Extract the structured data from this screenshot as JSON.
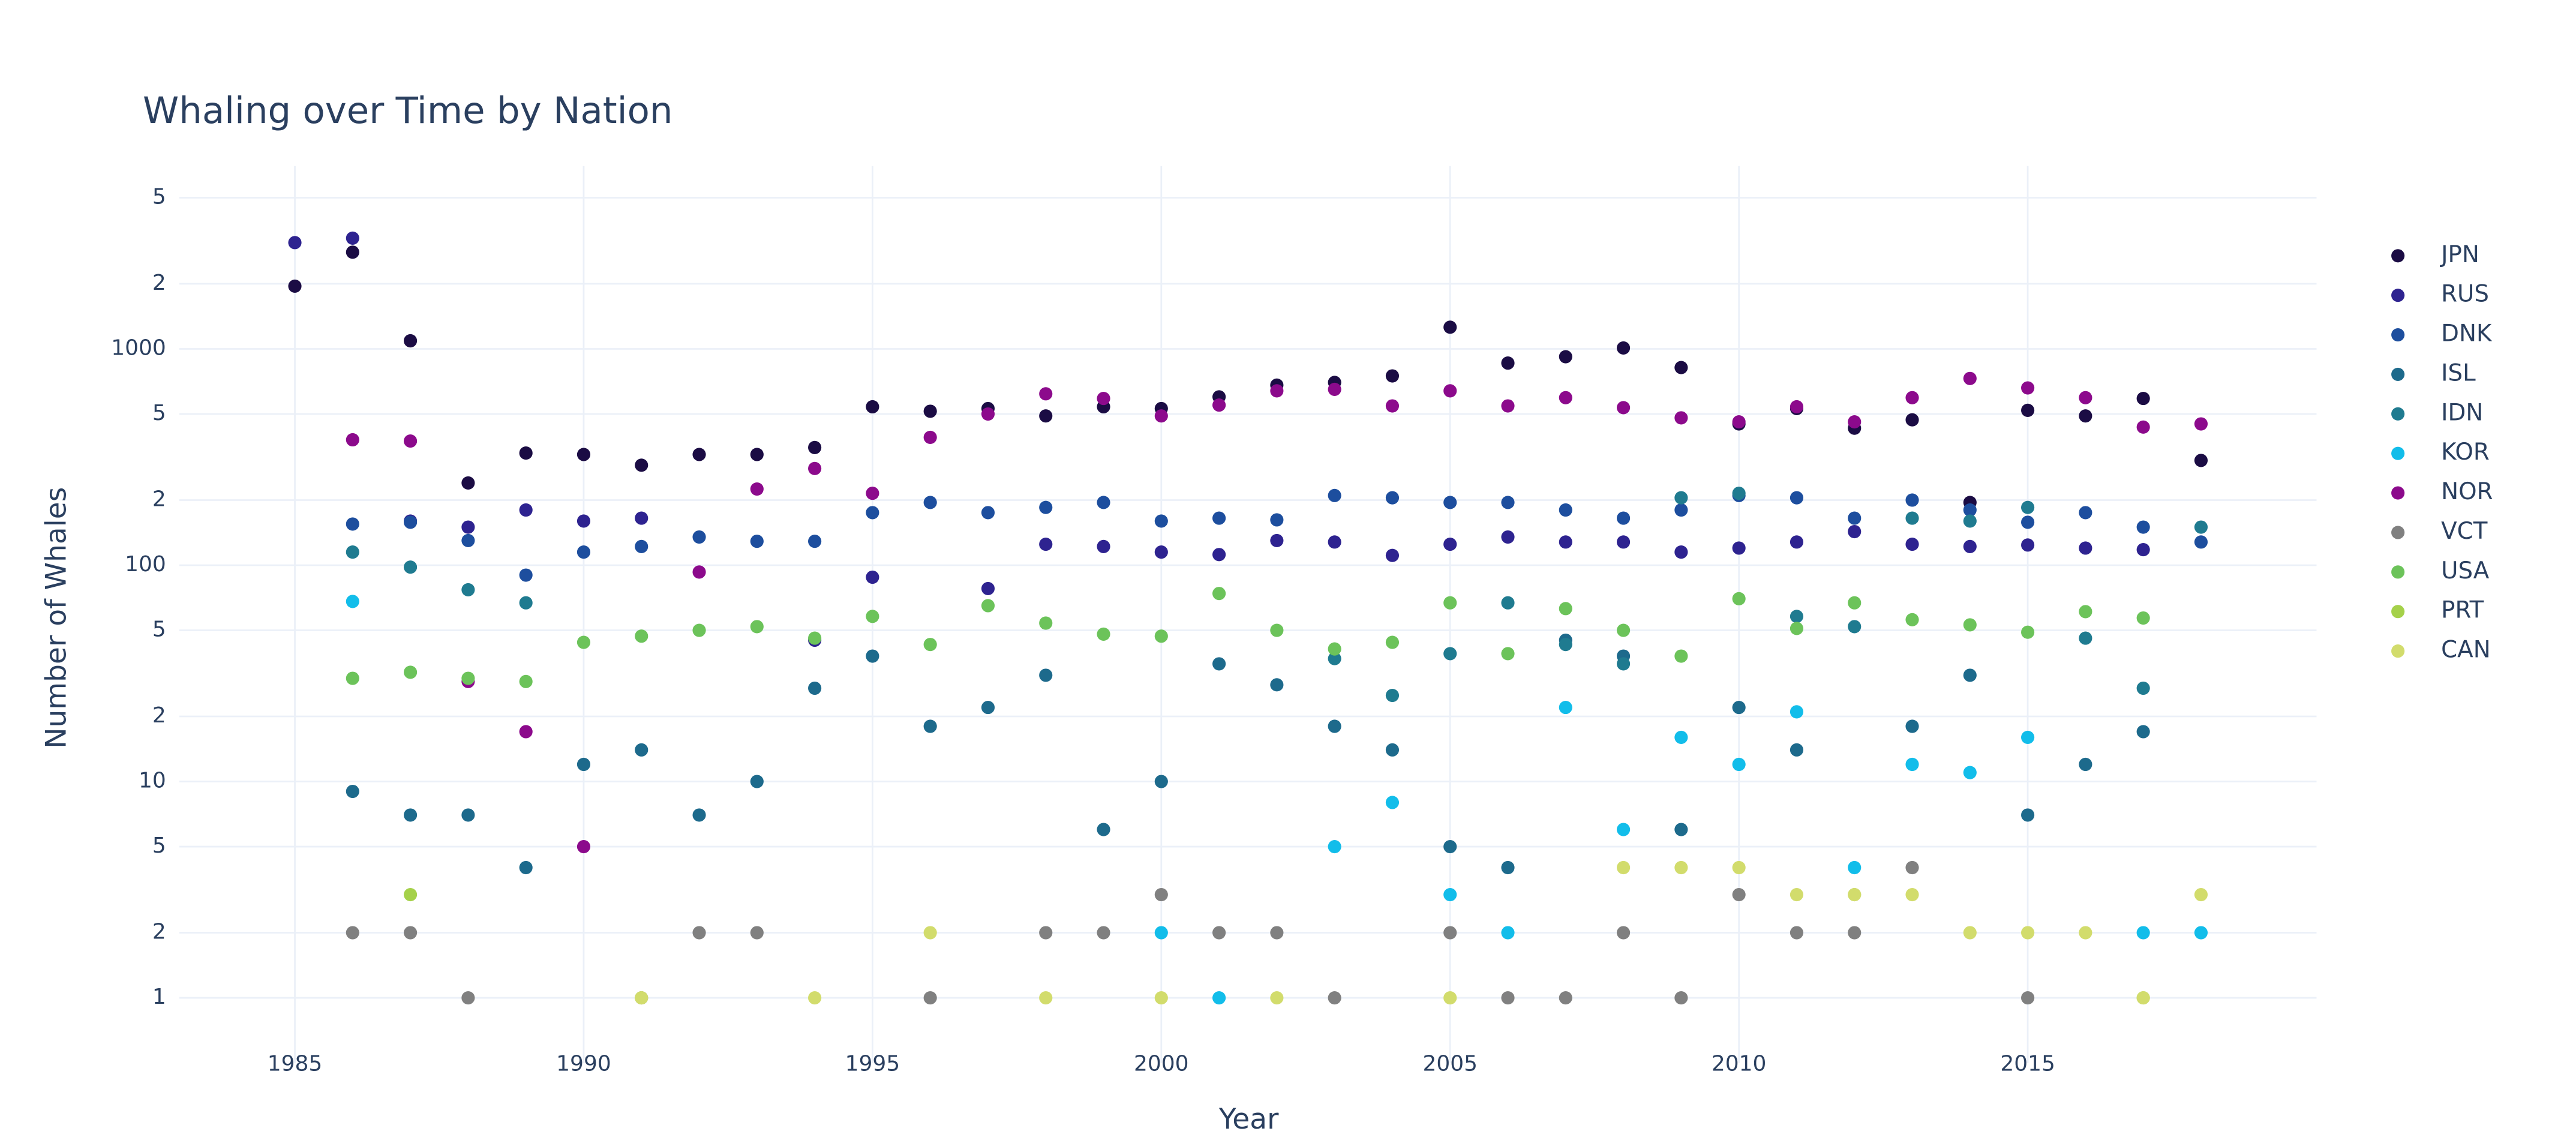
{
  "chart_data": {
    "type": "scatter",
    "title": "Whaling over Time by Nation",
    "x_label": "Year",
    "y_label": "Number of Whales",
    "log_y": true,
    "grid": true,
    "legend": "right",
    "xlim": [
      1983,
      2020
    ],
    "xticks": [
      1985,
      1990,
      1995,
      2000,
      2005,
      2010,
      2015
    ],
    "ylim": [
      0.5,
      7000
    ],
    "yticks": [
      1,
      2,
      5,
      10,
      {
        "value": 20,
        "label": "2"
      },
      {
        "value": 50,
        "label": "5"
      },
      100,
      {
        "value": 200,
        "label": "2"
      },
      {
        "value": 500,
        "label": "5"
      },
      1000,
      {
        "value": 2000,
        "label": "2"
      },
      {
        "value": 5000,
        "label": "5"
      }
    ],
    "series": [
      {
        "name": "JPN",
        "color": "#1b0c44",
        "x": [
          1985,
          1986,
          1987,
          1988,
          1989,
          1990,
          1991,
          1992,
          1993,
          1994,
          1995,
          1996,
          1997,
          1998,
          1999,
          2000,
          2001,
          2002,
          2003,
          2004,
          2005,
          2006,
          2007,
          2008,
          2009,
          2010,
          2011,
          2012,
          2013,
          2014,
          2015,
          2016,
          2017,
          2018
        ],
        "values": [
          1950,
          2800,
          1090,
          240,
          330,
          325,
          290,
          325,
          325,
          350,
          540,
          515,
          530,
          490,
          540,
          530,
          600,
          680,
          700,
          750,
          1260,
          860,
          920,
          1010,
          820,
          450,
          530,
          430,
          470,
          195,
          520,
          490,
          590,
          305
        ]
      },
      {
        "name": "RUS",
        "color": "#2e2390",
        "x": [
          1985,
          1986,
          1987,
          1988,
          1989,
          1990,
          1991,
          1994,
          1995,
          1997,
          1998,
          1999,
          2000,
          2001,
          2002,
          2003,
          2004,
          2005,
          2006,
          2007,
          2008,
          2009,
          2010,
          2011,
          2012,
          2013,
          2014,
          2015,
          2016,
          2017
        ],
        "values": [
          3100,
          3250,
          160,
          150,
          180,
          160,
          165,
          45,
          88,
          78,
          125,
          122,
          115,
          112,
          130,
          128,
          111,
          125,
          135,
          128,
          128,
          115,
          120,
          128,
          143,
          125,
          122,
          124,
          120,
          118
        ]
      },
      {
        "name": "DNK",
        "color": "#1d4e9e",
        "x": [
          1986,
          1987,
          1988,
          1989,
          1990,
          1991,
          1992,
          1993,
          1994,
          1995,
          1996,
          1997,
          1998,
          1999,
          2000,
          2001,
          2002,
          2003,
          2004,
          2005,
          2006,
          2007,
          2008,
          2009,
          2010,
          2011,
          2012,
          2013,
          2014,
          2015,
          2016,
          2017,
          2018
        ],
        "values": [
          155,
          158,
          130,
          90,
          115,
          122,
          135,
          129,
          129,
          175,
          195,
          175,
          185,
          195,
          160,
          165,
          162,
          210,
          205,
          195,
          195,
          180,
          165,
          180,
          210,
          205,
          165,
          200,
          180,
          158,
          175,
          150,
          128
        ]
      },
      {
        "name": "ISL",
        "color": "#1d6a8c",
        "x": [
          1986,
          1987,
          1988,
          1989,
          1990,
          1991,
          1992,
          1993,
          1994,
          1995,
          1996,
          1997,
          1998,
          1999,
          2000,
          2001,
          2002,
          2003,
          2004,
          2005,
          2006,
          2007,
          2008,
          2009,
          2010,
          2011,
          2013,
          2014,
          2015,
          2016,
          2017
        ],
        "values": [
          9,
          7,
          7,
          4,
          12,
          14,
          7,
          10,
          27,
          38,
          18,
          22,
          31,
          6,
          10,
          35,
          28,
          18,
          14,
          5,
          4,
          45,
          38,
          6,
          22,
          14,
          18,
          31,
          7,
          12,
          17
        ]
      },
      {
        "name": "IDN",
        "color": "#1f7b90",
        "x": [
          1986,
          1987,
          1988,
          1989,
          2003,
          2004,
          2005,
          2006,
          2007,
          2008,
          2009,
          2010,
          2011,
          2012,
          2013,
          2014,
          2015,
          2016,
          2017,
          2018
        ],
        "values": [
          115,
          98,
          77,
          67,
          37,
          25,
          39,
          67,
          43,
          35,
          205,
          215,
          58,
          52,
          165,
          160,
          185,
          46,
          27,
          150
        ]
      },
      {
        "name": "KOR",
        "color": "#12bdea",
        "x": [
          1986,
          2000,
          2001,
          2003,
          2004,
          2005,
          2006,
          2007,
          2008,
          2009,
          2010,
          2011,
          2012,
          2013,
          2014,
          2015,
          2017,
          2018
        ],
        "values": [
          68,
          2,
          1,
          5,
          8,
          3,
          2,
          22,
          6,
          16,
          12,
          21,
          4,
          12,
          11,
          16,
          2,
          2
        ]
      },
      {
        "name": "NOR",
        "color": "#8c0a8c",
        "x": [
          1986,
          1987,
          1988,
          1989,
          1990,
          1992,
          1993,
          1994,
          1995,
          1996,
          1997,
          1998,
          1999,
          2000,
          2001,
          2002,
          2003,
          2004,
          2005,
          2006,
          2007,
          2008,
          2009,
          2010,
          2011,
          2012,
          2013,
          2014,
          2015,
          2016,
          2017,
          2018
        ],
        "values": [
          380,
          375,
          29,
          17,
          5,
          93,
          225,
          280,
          215,
          390,
          500,
          620,
          590,
          490,
          550,
          640,
          650,
          545,
          640,
          545,
          595,
          535,
          480,
          460,
          540,
          460,
          595,
          730,
          660,
          595,
          435,
          450
        ]
      },
      {
        "name": "VCT",
        "color": "#808080",
        "x": [
          1986,
          1987,
          1988,
          1991,
          1992,
          1993,
          1996,
          1998,
          1999,
          2000,
          2001,
          2002,
          2003,
          2005,
          2006,
          2007,
          2008,
          2009,
          2010,
          2011,
          2012,
          2013,
          2015
        ],
        "values": [
          2,
          2,
          1,
          1,
          2,
          2,
          1,
          2,
          2,
          3,
          2,
          2,
          1,
          2,
          1,
          1,
          2,
          1,
          3,
          2,
          2,
          4,
          1
        ]
      },
      {
        "name": "USA",
        "color": "#6cc35a",
        "x": [
          1986,
          1987,
          1988,
          1989,
          1990,
          1991,
          1992,
          1993,
          1994,
          1995,
          1996,
          1997,
          1998,
          1999,
          2000,
          2001,
          2002,
          2003,
          2004,
          2005,
          2006,
          2007,
          2008,
          2009,
          2010,
          2011,
          2012,
          2013,
          2014,
          2015,
          2016,
          2017
        ],
        "values": [
          30,
          32,
          30,
          29,
          44,
          47,
          50,
          52,
          46,
          58,
          43,
          65,
          54,
          48,
          47,
          74,
          50,
          41,
          44,
          67,
          39,
          63,
          50,
          38,
          70,
          51,
          67,
          56,
          53,
          49,
          61,
          57
        ]
      },
      {
        "name": "PRT",
        "color": "#a5d14a",
        "x": [
          1987,
          1991,
          2012,
          2017
        ],
        "values": [
          3,
          1,
          3,
          1
        ]
      },
      {
        "name": "CAN",
        "color": "#d2dc6c",
        "x": [
          1991,
          1994,
          1996,
          1998,
          2000,
          2002,
          2005,
          2008,
          2009,
          2010,
          2011,
          2012,
          2013,
          2014,
          2015,
          2016,
          2017,
          2018
        ],
        "values": [
          1,
          1,
          2,
          1,
          1,
          1,
          1,
          4,
          4,
          4,
          3,
          3,
          3,
          2,
          2,
          2,
          1,
          3
        ]
      }
    ]
  }
}
